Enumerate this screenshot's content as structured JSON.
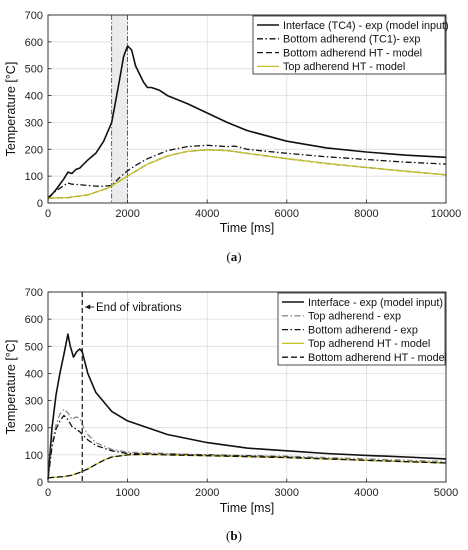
{
  "chart_data": [
    {
      "type": "line",
      "caption_letter": "a",
      "xlabel": "Time [ms]",
      "ylabel": "Temperature [°C]",
      "xlim": [
        0,
        10000
      ],
      "ylim": [
        0,
        700
      ],
      "xticks": [
        0,
        2000,
        4000,
        6000,
        8000,
        10000
      ],
      "yticks": [
        0,
        100,
        200,
        300,
        400,
        500,
        600,
        700
      ],
      "grid": true,
      "legend_position": "top-right",
      "shaded_interval": [
        1600,
        2000
      ],
      "series": [
        {
          "name": "Interface (TC4) - exp (model input)",
          "color": "#111111",
          "style": "solid",
          "x": [
            0,
            200,
            400,
            500,
            600,
            700,
            800,
            1000,
            1200,
            1400,
            1600,
            1700,
            1800,
            1900,
            2000,
            2100,
            2200,
            2400,
            2500,
            2600,
            2800,
            3000,
            3500,
            4000,
            4500,
            5000,
            6000,
            7000,
            8000,
            9000,
            10000
          ],
          "y": [
            15,
            50,
            90,
            115,
            110,
            125,
            130,
            160,
            185,
            230,
            300,
            380,
            460,
            545,
            585,
            570,
            510,
            450,
            430,
            430,
            420,
            400,
            370,
            335,
            300,
            270,
            230,
            205,
            190,
            178,
            170
          ]
        },
        {
          "name": "Bottom adherend (TC1)- exp",
          "color": "#111111",
          "style": "dashdot",
          "x": [
            0,
            200,
            400,
            500,
            600,
            800,
            1000,
            1200,
            1400,
            1600,
            1800,
            2000,
            2200,
            2500,
            3000,
            3500,
            4000,
            4500,
            4700,
            5000,
            6000,
            7000,
            8000,
            9000,
            10000
          ],
          "y": [
            20,
            45,
            65,
            75,
            70,
            68,
            65,
            63,
            62,
            65,
            95,
            120,
            140,
            165,
            195,
            210,
            215,
            210,
            212,
            200,
            185,
            172,
            162,
            152,
            145
          ]
        },
        {
          "name": "Bottom adherend HT - model",
          "color": "#111111",
          "style": "dashed",
          "x": [
            0,
            500,
            1000,
            1500,
            2000,
            2500,
            3000,
            3500,
            4000,
            4500,
            5000,
            6000,
            7000,
            8000,
            9000,
            10000
          ],
          "y": [
            18,
            20,
            30,
            55,
            100,
            145,
            175,
            192,
            198,
            195,
            185,
            165,
            147,
            132,
            118,
            105
          ]
        },
        {
          "name": "Top adherend HT - model",
          "color": "#c8c02a",
          "style": "solid",
          "x": [
            0,
            500,
            1000,
            1500,
            2000,
            2500,
            3000,
            3500,
            4000,
            4500,
            5000,
            6000,
            7000,
            8000,
            9000,
            10000
          ],
          "y": [
            18,
            20,
            30,
            55,
            100,
            145,
            175,
            192,
            198,
            195,
            185,
            165,
            147,
            132,
            118,
            105
          ]
        }
      ]
    },
    {
      "type": "line",
      "caption_letter": "b",
      "xlabel": "Time [ms]",
      "ylabel": "Temperature [°C]",
      "xlim": [
        0,
        5000
      ],
      "ylim": [
        0,
        700
      ],
      "xticks": [
        0,
        1000,
        2000,
        3000,
        4000,
        5000
      ],
      "yticks": [
        0,
        100,
        200,
        300,
        400,
        500,
        600,
        700
      ],
      "grid": true,
      "legend_position": "top-right",
      "vline_x": 430,
      "annotation": "End of vibrations",
      "series": [
        {
          "name": "Interface - exp (model input)",
          "color": "#111111",
          "style": "solid",
          "x": [
            0,
            50,
            100,
            150,
            200,
            250,
            280,
            320,
            360,
            400,
            430,
            500,
            600,
            800,
            1000,
            1500,
            2000,
            2500,
            3000,
            3500,
            4000,
            4500,
            5000
          ],
          "y": [
            10,
            200,
            320,
            400,
            470,
            545,
            500,
            460,
            480,
            490,
            480,
            400,
            330,
            260,
            225,
            175,
            145,
            125,
            115,
            105,
            98,
            92,
            85
          ]
        },
        {
          "name": "Top adherend - exp",
          "color": "#8a8a8a",
          "style": "dashdot",
          "x": [
            0,
            50,
            100,
            150,
            200,
            250,
            300,
            350,
            400,
            450,
            500,
            600,
            800,
            1000,
            1500,
            2000,
            3000,
            4000,
            5000
          ],
          "y": [
            10,
            140,
            210,
            250,
            268,
            255,
            230,
            240,
            235,
            200,
            175,
            145,
            120,
            110,
            105,
            100,
            95,
            85,
            75
          ]
        },
        {
          "name": "Bottom adherend - exp",
          "color": "#111111",
          "style": "dashdot",
          "x": [
            0,
            50,
            100,
            150,
            200,
            250,
            300,
            350,
            400,
            450,
            500,
            600,
            800,
            1000,
            1500,
            2000,
            3000,
            4000,
            5000
          ],
          "y": [
            10,
            130,
            195,
            225,
            245,
            230,
            205,
            195,
            185,
            170,
            155,
            135,
            115,
            105,
            102,
            100,
            92,
            80,
            70
          ]
        },
        {
          "name": "Top adherend HT - model",
          "color": "#c8c02a",
          "style": "solid",
          "x": [
            0,
            100,
            200,
            300,
            400,
            500,
            600,
            700,
            800,
            1000,
            1200,
            1500,
            2000,
            3000,
            4000,
            5000
          ],
          "y": [
            15,
            18,
            20,
            25,
            35,
            48,
            65,
            80,
            92,
            100,
            102,
            100,
            97,
            90,
            80,
            70
          ]
        },
        {
          "name": "Bottom adherend HT - model",
          "color": "#111111",
          "style": "dashed",
          "x": [
            0,
            100,
            200,
            300,
            400,
            500,
            600,
            700,
            800,
            1000,
            1200,
            1500,
            2000,
            3000,
            4000,
            5000
          ],
          "y": [
            15,
            18,
            20,
            25,
            35,
            48,
            65,
            80,
            92,
            100,
            102,
            100,
            97,
            90,
            80,
            70
          ]
        }
      ]
    }
  ]
}
